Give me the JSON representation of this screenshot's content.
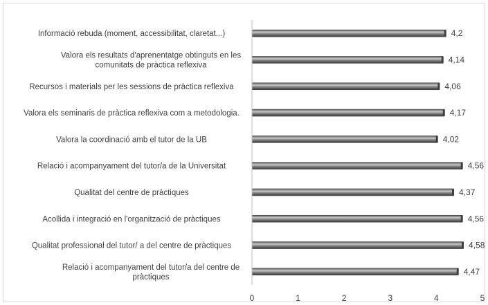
{
  "chart_data": {
    "type": "bar",
    "orientation": "horizontal",
    "categories": [
      [
        "Informació rebuda (moment, accessibilitat, claretat...)"
      ],
      [
        "Valora els resultats d'aprenentatge obtinguts en les",
        "comunitats de pràctica reflexiva"
      ],
      [
        "Recursos i materials per les sessions de pràctica reflexiva"
      ],
      [
        "Valora els seminaris de pràctica reflexiva com a metodologia."
      ],
      [
        "Valora la coordinació amb el tutor de la UB"
      ],
      [
        "Relació i acompanyament del tutor/a de la Universitat"
      ],
      [
        "Qualitat del centre de pràctiques"
      ],
      [
        "Acollida i integració en l'organització de pràctiques"
      ],
      [
        "Qualitat professional del tutor/ a del centre de pràctiques"
      ],
      [
        "Relació i acompanyament del tutor/a del centre de",
        "pràctiques"
      ]
    ],
    "values": [
      4.2,
      4.14,
      4.06,
      4.17,
      4.02,
      4.56,
      4.37,
      4.56,
      4.58,
      4.47
    ],
    "value_labels": [
      "4,2",
      "4,14",
      "4,06",
      "4,17",
      "4,02",
      "4,56",
      "4,37",
      "4,56",
      "4,58",
      "4,47"
    ],
    "xlim": [
      0,
      5
    ],
    "x_ticks": [
      "0",
      "1",
      "2",
      "3",
      "4",
      "5"
    ],
    "grid": false,
    "legend": "none",
    "bar_color": "#7f7f7f",
    "bar_dark": "#404040",
    "bar_light": "#c8c8c8"
  }
}
